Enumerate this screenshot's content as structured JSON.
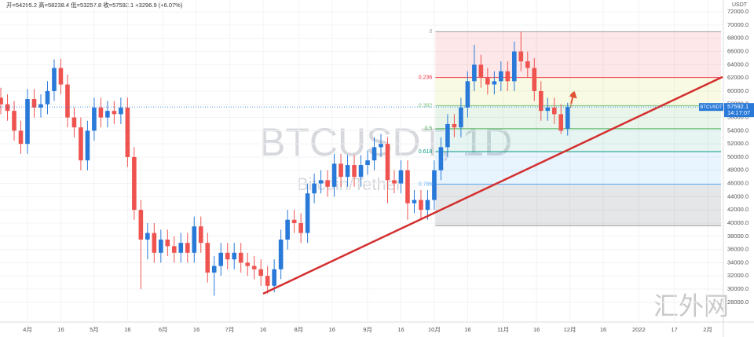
{
  "chart_data": {
    "type": "candlestick",
    "header": "开=54295.2 高=58238.4 低=53257.8 收=57592.1 +3296.9 (+6.07%)",
    "watermark": "BTCUSDT, 1D",
    "watermark_subtitle": "Bitcoin/Tether",
    "symbol": "BTCUSDT",
    "countdown": "14:17:07",
    "unit": "USDT",
    "site_watermark": "汇外网",
    "up_color": "#2979d9",
    "down_color": "#ef5350",
    "x": [
      -12,
      -9,
      -6,
      -3,
      0,
      3,
      6,
      9,
      12,
      15,
      18,
      21,
      24,
      27,
      30,
      33,
      36,
      39,
      42,
      45,
      48,
      51,
      54,
      57,
      60,
      63,
      66,
      69,
      72,
      75,
      78,
      81,
      84,
      87,
      90,
      93,
      96,
      99,
      102,
      105,
      108,
      111,
      114,
      117,
      120,
      123,
      126,
      129,
      132,
      135,
      138,
      141,
      144,
      147,
      150,
      153,
      156,
      159,
      162,
      165,
      168,
      171,
      174,
      177,
      180,
      183,
      186,
      189,
      192,
      195,
      198,
      201,
      204,
      207,
      210,
      213,
      216,
      219,
      222,
      225,
      228,
      231,
      234,
      237,
      240,
      243
    ],
    "open": [
      59000,
      58000,
      57000,
      54000,
      52000,
      58800,
      57500,
      58000,
      60000,
      63500,
      61000,
      56000,
      54500,
      49500,
      54000,
      57500,
      56000,
      57000,
      56500,
      57500,
      50000,
      42000,
      37500,
      38500,
      35500,
      37500,
      36500,
      35500,
      37000,
      35500,
      39500,
      37000,
      32500,
      33500,
      35500,
      34500,
      35500,
      34000,
      33500,
      33000,
      32000,
      30500,
      33000,
      37500,
      40500,
      40000,
      38500,
      44500,
      46000,
      46500,
      45500,
      49000,
      47000,
      48800,
      47000,
      48800,
      49500,
      51500,
      52000,
      46500,
      46000,
      48000,
      43000,
      43500,
      42000,
      43500,
      48000,
      51500,
      55000,
      54500,
      57500,
      61500,
      64000,
      62000,
      61000,
      61500,
      63000,
      61500,
      66000,
      64500,
      63500,
      60000,
      57000,
      57500,
      56500,
      54295.2
    ],
    "high": [
      60500,
      59500,
      58500,
      55500,
      60300,
      60300,
      59500,
      61500,
      64800,
      64900,
      62500,
      57500,
      56000,
      55500,
      59000,
      59000,
      58500,
      58500,
      59000,
      59000,
      51500,
      43500,
      40000,
      40000,
      39000,
      39000,
      38000,
      38500,
      38500,
      41000,
      41000,
      38500,
      35000,
      37000,
      37000,
      37000,
      37000,
      35500,
      35000,
      34500,
      33500,
      34500,
      39000,
      42000,
      42000,
      41500,
      46000,
      47500,
      48000,
      48000,
      50500,
      50500,
      50300,
      50300,
      50300,
      51000,
      53000,
      53500,
      53000,
      48000,
      49500,
      49500,
      45000,
      45000,
      45000,
      49500,
      53000,
      56500,
      56500,
      59000,
      63000,
      67000,
      65500,
      63500,
      63000,
      64500,
      64500,
      67500,
      69000,
      66000,
      65000,
      61500,
      59000,
      59000,
      58000,
      58238.4
    ],
    "low": [
      56500,
      55500,
      52500,
      50500,
      50500,
      56000,
      56000,
      56500,
      58500,
      59500,
      54500,
      53000,
      48000,
      48000,
      52500,
      54500,
      54500,
      55000,
      55000,
      48500,
      40500,
      30000,
      34500,
      34000,
      34000,
      35000,
      34000,
      34000,
      34000,
      34000,
      35500,
      31000,
      29000,
      32000,
      33000,
      33000,
      32500,
      32000,
      31500,
      30500,
      29300,
      29500,
      31500,
      36000,
      38500,
      37000,
      37000,
      43000,
      44500,
      44000,
      44000,
      45500,
      45500,
      45500,
      45500,
      47300,
      48000,
      50000,
      43000,
      44500,
      44500,
      40500,
      41500,
      40500,
      40500,
      42000,
      46500,
      50000,
      53000,
      53000,
      56000,
      60000,
      60500,
      59500,
      59500,
      60000,
      60000,
      60000,
      63000,
      62000,
      58500,
      55500,
      55500,
      55000,
      53500,
      53257.8
    ],
    "close": [
      58000,
      57000,
      54000,
      52000,
      58800,
      57500,
      58000,
      60000,
      63500,
      61000,
      56000,
      54500,
      49500,
      54000,
      57500,
      56000,
      57000,
      56500,
      57500,
      50000,
      42000,
      37500,
      38500,
      35500,
      37500,
      36500,
      35500,
      37000,
      35500,
      39500,
      37000,
      32500,
      33500,
      35500,
      34500,
      35500,
      34000,
      33500,
      33000,
      32000,
      30500,
      33000,
      37500,
      40500,
      40000,
      38500,
      44500,
      46000,
      46500,
      45500,
      49000,
      47000,
      48800,
      47000,
      48800,
      49500,
      51500,
      52000,
      46500,
      46000,
      48000,
      43000,
      43500,
      42000,
      43500,
      48000,
      51500,
      55000,
      54500,
      57500,
      61500,
      64000,
      62000,
      61000,
      61500,
      63000,
      61500,
      66000,
      64500,
      63500,
      60000,
      57000,
      57500,
      56500,
      54000,
      57592.1
    ],
    "xlim": [
      -12.37,
      312.7
    ],
    "xticks": [
      {
        "value": 0,
        "label": "4月"
      },
      {
        "value": 15,
        "label": "16"
      },
      {
        "value": 30,
        "label": "5月"
      },
      {
        "value": 45,
        "label": "16"
      },
      {
        "value": 61,
        "label": "6月"
      },
      {
        "value": 76,
        "label": "16"
      },
      {
        "value": 91,
        "label": "7月"
      },
      {
        "value": 106,
        "label": "16"
      },
      {
        "value": 122,
        "label": "8月"
      },
      {
        "value": 137,
        "label": "16"
      },
      {
        "value": 153,
        "label": "9月"
      },
      {
        "value": 168,
        "label": "16"
      },
      {
        "value": 183,
        "label": "10月"
      },
      {
        "value": 198,
        "label": "16"
      },
      {
        "value": 214,
        "label": "11月"
      },
      {
        "value": 229,
        "label": "16"
      },
      {
        "value": 244,
        "label": "12月"
      },
      {
        "value": 259,
        "label": "16"
      },
      {
        "value": 275,
        "label": "2022"
      },
      {
        "value": 291,
        "label": "17"
      },
      {
        "value": 306,
        "label": "2月"
      }
    ],
    "ylim": [
      25000,
      73800
    ],
    "yticks": [
      {
        "value": 28000,
        "label": "28000.0"
      },
      {
        "value": 30000,
        "label": "30000.0"
      },
      {
        "value": 32000,
        "label": "32000.0"
      },
      {
        "value": 34000,
        "label": "34000.0"
      },
      {
        "value": 36000,
        "label": "36000.0"
      },
      {
        "value": 38000,
        "label": "38000.0"
      },
      {
        "value": 40000,
        "label": "40000.0"
      },
      {
        "value": 42000,
        "label": "42000.0"
      },
      {
        "value": 44000,
        "label": "44000.0"
      },
      {
        "value": 46000,
        "label": "46000.0"
      },
      {
        "value": 48000,
        "label": "48000.0"
      },
      {
        "value": 50000,
        "label": "50000.0"
      },
      {
        "value": 52000,
        "label": "52000.0"
      },
      {
        "value": 54000,
        "label": "54000.0"
      },
      {
        "value": 56000,
        "label": "56000.0"
      },
      {
        "value": 58000,
        "label": "58000.0"
      },
      {
        "value": 60000,
        "label": "60000.0"
      },
      {
        "value": 62000,
        "label": "62000.0"
      },
      {
        "value": 64000,
        "label": "64000.0"
      },
      {
        "value": 66000,
        "label": "66000.0"
      },
      {
        "value": 68000,
        "label": "68000.0"
      },
      {
        "value": 70000,
        "label": "70000.0"
      },
      {
        "value": 72000,
        "label": "72000.0"
      }
    ],
    "grid": true,
    "fib": {
      "levels": [
        0,
        0.236,
        0.382,
        0.5,
        0.618,
        0.786
      ],
      "high": 69000,
      "low": 39600,
      "x_start": 183.5,
      "colors": [
        "#9e9e9e",
        "#f23645",
        "#81c784",
        "#4caf50",
        "#089981",
        "#64b5f6"
      ],
      "zone_colors": [
        "rgba(242,54,69,0.12)",
        "rgba(205,220,57,0.14)",
        "rgba(76,175,80,0.12)",
        "rgba(8,153,129,0.10)",
        "rgba(33,150,243,0.10)",
        "rgba(120,123,134,0.10)"
      ]
    },
    "trendline": {
      "x": [
        106,
        312.7
      ],
      "y": [
        29300,
        62150
      ],
      "color": "#d32f2f"
    }
  }
}
